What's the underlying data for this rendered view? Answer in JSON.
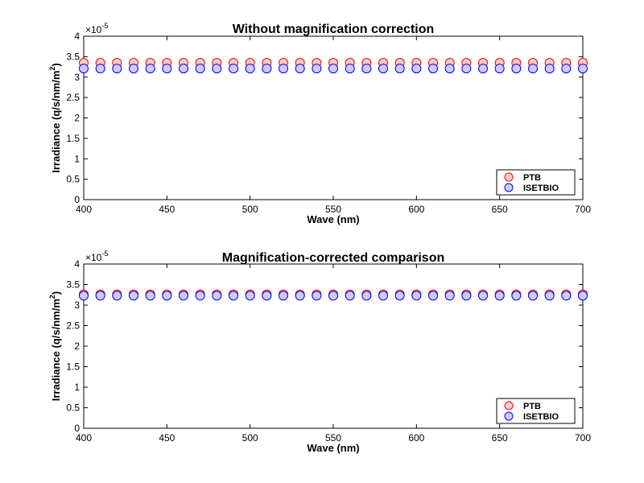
{
  "chart_data": [
    {
      "type": "scatter",
      "title": "Without magnification correction",
      "xlabel": "Wave (nm)",
      "ylabel_main": "Irradiance (q/s/nm/m",
      "ylabel_sup": "2",
      "ylabel_tail": ")",
      "exponent_base": "×10",
      "exponent_power": "-5",
      "xlim": [
        400,
        700
      ],
      "ylim": [
        0,
        4
      ],
      "x_ticks": [
        "400",
        "450",
        "500",
        "550",
        "600",
        "650",
        "700"
      ],
      "y_ticks": [
        "0",
        "0.5",
        "1",
        "1.5",
        "2",
        "2.5",
        "3",
        "3.5",
        "4"
      ],
      "x": [
        400,
        410,
        420,
        430,
        440,
        450,
        460,
        470,
        480,
        490,
        500,
        510,
        520,
        530,
        540,
        550,
        560,
        570,
        580,
        590,
        600,
        610,
        620,
        630,
        640,
        650,
        660,
        670,
        680,
        690,
        700
      ],
      "legend_position": "bottom-right",
      "series": [
        {
          "name": "PTB",
          "color": "#ff0000",
          "fill": "#ffcccc",
          "value": 3.35
        },
        {
          "name": "ISETBIO",
          "color": "#0000ff",
          "fill": "#ccccff",
          "value": 3.21
        }
      ]
    },
    {
      "type": "scatter",
      "title": "Magnification-corrected comparison",
      "xlabel": "Wave (nm)",
      "ylabel_main": "Irradiance (q/s/nm/m",
      "ylabel_sup": "2",
      "ylabel_tail": ")",
      "exponent_base": "×10",
      "exponent_power": "-5",
      "xlim": [
        400,
        700
      ],
      "ylim": [
        0,
        4
      ],
      "x_ticks": [
        "400",
        "450",
        "500",
        "550",
        "600",
        "650",
        "700"
      ],
      "y_ticks": [
        "0",
        "0.5",
        "1",
        "1.5",
        "2",
        "2.5",
        "3",
        "3.5",
        "4"
      ],
      "x": [
        400,
        410,
        420,
        430,
        440,
        450,
        460,
        470,
        480,
        490,
        500,
        510,
        520,
        530,
        540,
        550,
        560,
        570,
        580,
        590,
        600,
        610,
        620,
        630,
        640,
        650,
        660,
        670,
        680,
        690,
        700
      ],
      "legend_position": "bottom-right",
      "series": [
        {
          "name": "PTB",
          "color": "#ff0000",
          "fill": "#ffcccc",
          "value": 3.26
        },
        {
          "name": "ISETBIO",
          "color": "#0000ff",
          "fill": "#ccccff",
          "value": 3.23
        }
      ]
    }
  ]
}
